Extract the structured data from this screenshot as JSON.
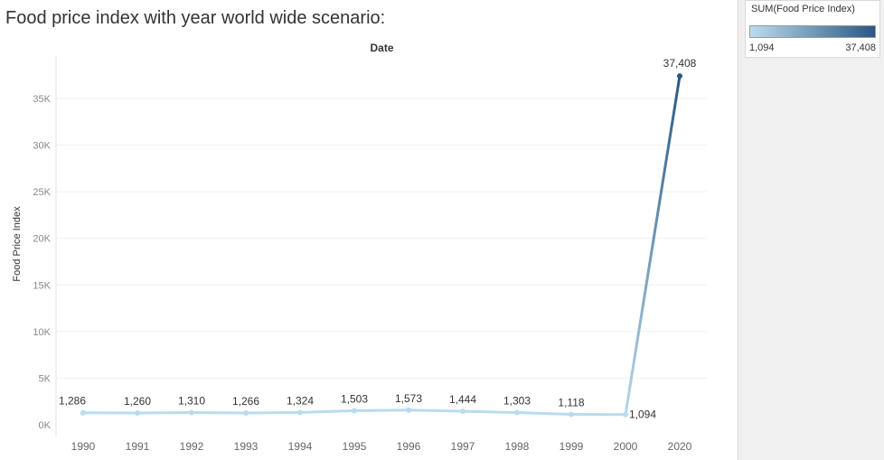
{
  "chart_data": {
    "type": "line",
    "title": "Food price index with year world wide scenario:",
    "column_header": "Date",
    "xlabel": "",
    "ylabel": "Food Price Index",
    "categories": [
      "1990",
      "1991",
      "1992",
      "1993",
      "1994",
      "1995",
      "1996",
      "1997",
      "1998",
      "1999",
      "2000",
      "2020"
    ],
    "values": [
      1286,
      1260,
      1310,
      1266,
      1324,
      1503,
      1573,
      1444,
      1303,
      1118,
      1094,
      37408
    ],
    "data_labels": [
      "1,286",
      "1,260",
      "1,310",
      "1,266",
      "1,324",
      "1,503",
      "1,573",
      "1,444",
      "1,303",
      "1,118",
      "1,094",
      "37,408"
    ],
    "ylim": [
      0,
      40000
    ],
    "y_ticks": [
      0,
      5000,
      10000,
      15000,
      20000,
      25000,
      30000,
      35000
    ],
    "y_tick_labels": [
      "0K",
      "5K",
      "10K",
      "15K",
      "20K",
      "25K",
      "30K",
      "35K"
    ],
    "grid": true,
    "color_scale": {
      "min_color": "#b9dcee",
      "max_color": "#2a5783"
    }
  },
  "legend": {
    "title": "SUM(Food Price Index)",
    "min_label": "1,094",
    "max_label": "37,408"
  }
}
